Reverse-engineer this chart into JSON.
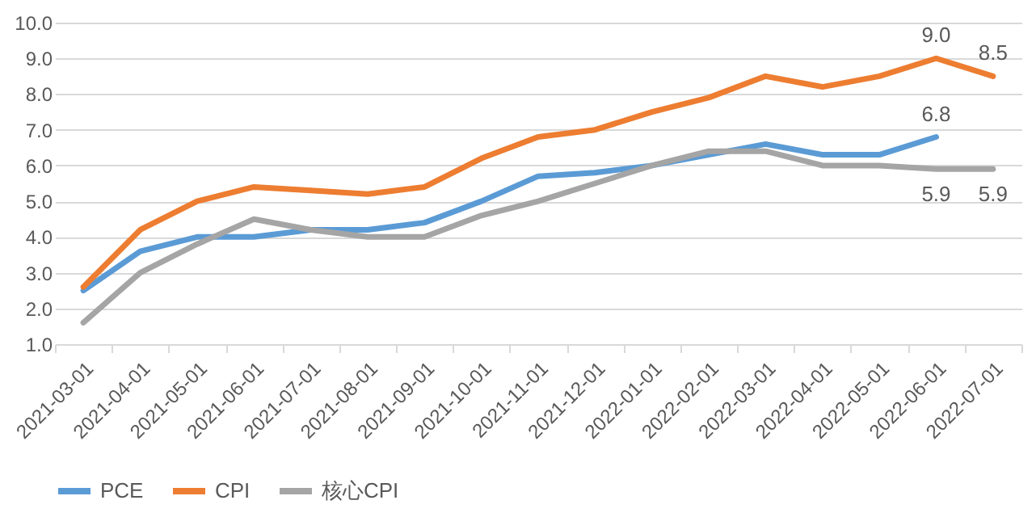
{
  "chart_data": {
    "type": "line",
    "categories": [
      "2021-03-01",
      "2021-04-01",
      "2021-05-01",
      "2021-06-01",
      "2021-07-01",
      "2021-08-01",
      "2021-09-01",
      "2021-10-01",
      "2021-11-01",
      "2021-12-01",
      "2022-01-01",
      "2022-02-01",
      "2022-03-01",
      "2022-04-01",
      "2022-05-01",
      "2022-06-01",
      "2022-07-01"
    ],
    "series": [
      {
        "name": "PCE",
        "color": "#5b9bd5",
        "values": [
          2.5,
          3.6,
          4.0,
          4.0,
          4.2,
          4.2,
          4.4,
          5.0,
          5.7,
          5.8,
          6.0,
          6.3,
          6.6,
          6.3,
          6.3,
          6.8,
          null
        ],
        "value_labels": [
          null,
          null,
          null,
          null,
          null,
          null,
          null,
          null,
          null,
          null,
          null,
          null,
          null,
          null,
          null,
          "6.8",
          null
        ]
      },
      {
        "name": "CPI",
        "color": "#ed7d31",
        "values": [
          2.6,
          4.2,
          5.0,
          5.4,
          5.3,
          5.2,
          5.4,
          6.2,
          6.8,
          7.0,
          7.5,
          7.9,
          8.5,
          8.2,
          8.5,
          9.0,
          8.5
        ],
        "value_labels": [
          null,
          null,
          null,
          null,
          null,
          null,
          null,
          null,
          null,
          null,
          null,
          null,
          null,
          null,
          null,
          "9.0",
          "8.5"
        ]
      },
      {
        "name": "核心CPI",
        "color": "#a5a5a5",
        "values": [
          1.6,
          3.0,
          3.8,
          4.5,
          4.2,
          4.0,
          4.0,
          4.6,
          5.0,
          5.5,
          6.0,
          6.4,
          6.4,
          6.0,
          6.0,
          5.9,
          5.9
        ],
        "value_labels": [
          null,
          null,
          null,
          null,
          null,
          null,
          null,
          null,
          null,
          null,
          null,
          null,
          null,
          null,
          null,
          "5.9",
          "5.9"
        ]
      }
    ],
    "ylim": [
      1.0,
      10.0
    ],
    "yticks": [
      {
        "value": 1,
        "label": "1.0"
      },
      {
        "value": 2,
        "label": "2.0"
      },
      {
        "value": 3,
        "label": "3.0"
      },
      {
        "value": 4,
        "label": "4.0"
      },
      {
        "value": 5,
        "label": "5.0"
      },
      {
        "value": 6,
        "label": "6.0"
      },
      {
        "value": 7,
        "label": "7.0"
      },
      {
        "value": 8,
        "label": "8.0"
      },
      {
        "value": 9,
        "label": "9.0"
      },
      {
        "value": 10,
        "label": "10.0"
      }
    ],
    "grid": "y",
    "legend": "bottom",
    "marker": "none",
    "line_style": "solid"
  }
}
